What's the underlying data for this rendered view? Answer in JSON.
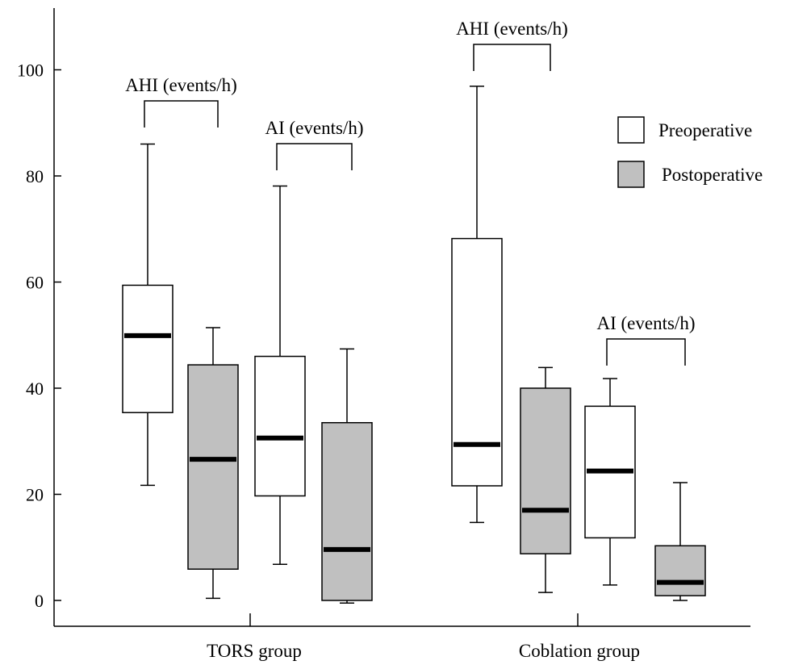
{
  "chart_data": {
    "type": "box",
    "title": "",
    "xlabel": "",
    "ylabel": "",
    "ylim": [
      0,
      110
    ],
    "yticks": [
      0,
      20,
      40,
      60,
      80,
      100
    ],
    "grid": false,
    "legend_position": "top-right",
    "legend": [
      {
        "label": "Preoperative",
        "color": "#ffffff"
      },
      {
        "label": "Postoperative",
        "color": "#c0c0c0"
      }
    ],
    "groups": [
      {
        "name": "TORS group",
        "measures": [
          {
            "label": "AHI (events/h)",
            "boxes": [
              {
                "series": "Preoperative",
                "whisker_low": 21.7,
                "q1": 35.4,
                "median": 49.9,
                "q3": 59.4,
                "whisker_high": 86
              },
              {
                "series": "Postoperative",
                "whisker_low": 0.4,
                "q1": 5.9,
                "median": 26.6,
                "q3": 44.4,
                "whisker_high": 51.4
              }
            ]
          },
          {
            "label": "AI (events/h)",
            "boxes": [
              {
                "series": "Preoperative",
                "whisker_low": 6.8,
                "q1": 19.7,
                "median": 30.6,
                "q3": 46,
                "whisker_high": 78.1
              },
              {
                "series": "Postoperative",
                "whisker_low": -0.5,
                "q1": 0,
                "median": 9.6,
                "q3": 33.5,
                "whisker_high": 47.4
              }
            ]
          }
        ]
      },
      {
        "name": "Coblation group",
        "measures": [
          {
            "label": "AHI (events/h)",
            "boxes": [
              {
                "series": "Preoperative",
                "whisker_low": 14.7,
                "q1": 21.6,
                "median": 29.4,
                "q3": 68.2,
                "whisker_high": 96.9
              },
              {
                "series": "Postoperative",
                "whisker_low": 1.5,
                "q1": 8.8,
                "median": 17,
                "q3": 40,
                "whisker_high": 43.9
              }
            ]
          },
          {
            "label": "AI (events/h)",
            "boxes": [
              {
                "series": "Preoperative",
                "whisker_low": 2.9,
                "q1": 11.8,
                "median": 24.4,
                "q3": 36.6,
                "whisker_high": 41.8
              },
              {
                "series": "Postoperative",
                "whisker_low": 0,
                "q1": 0.9,
                "median": 3.4,
                "q3": 10.3,
                "whisker_high": 22.2
              }
            ]
          }
        ]
      }
    ]
  }
}
